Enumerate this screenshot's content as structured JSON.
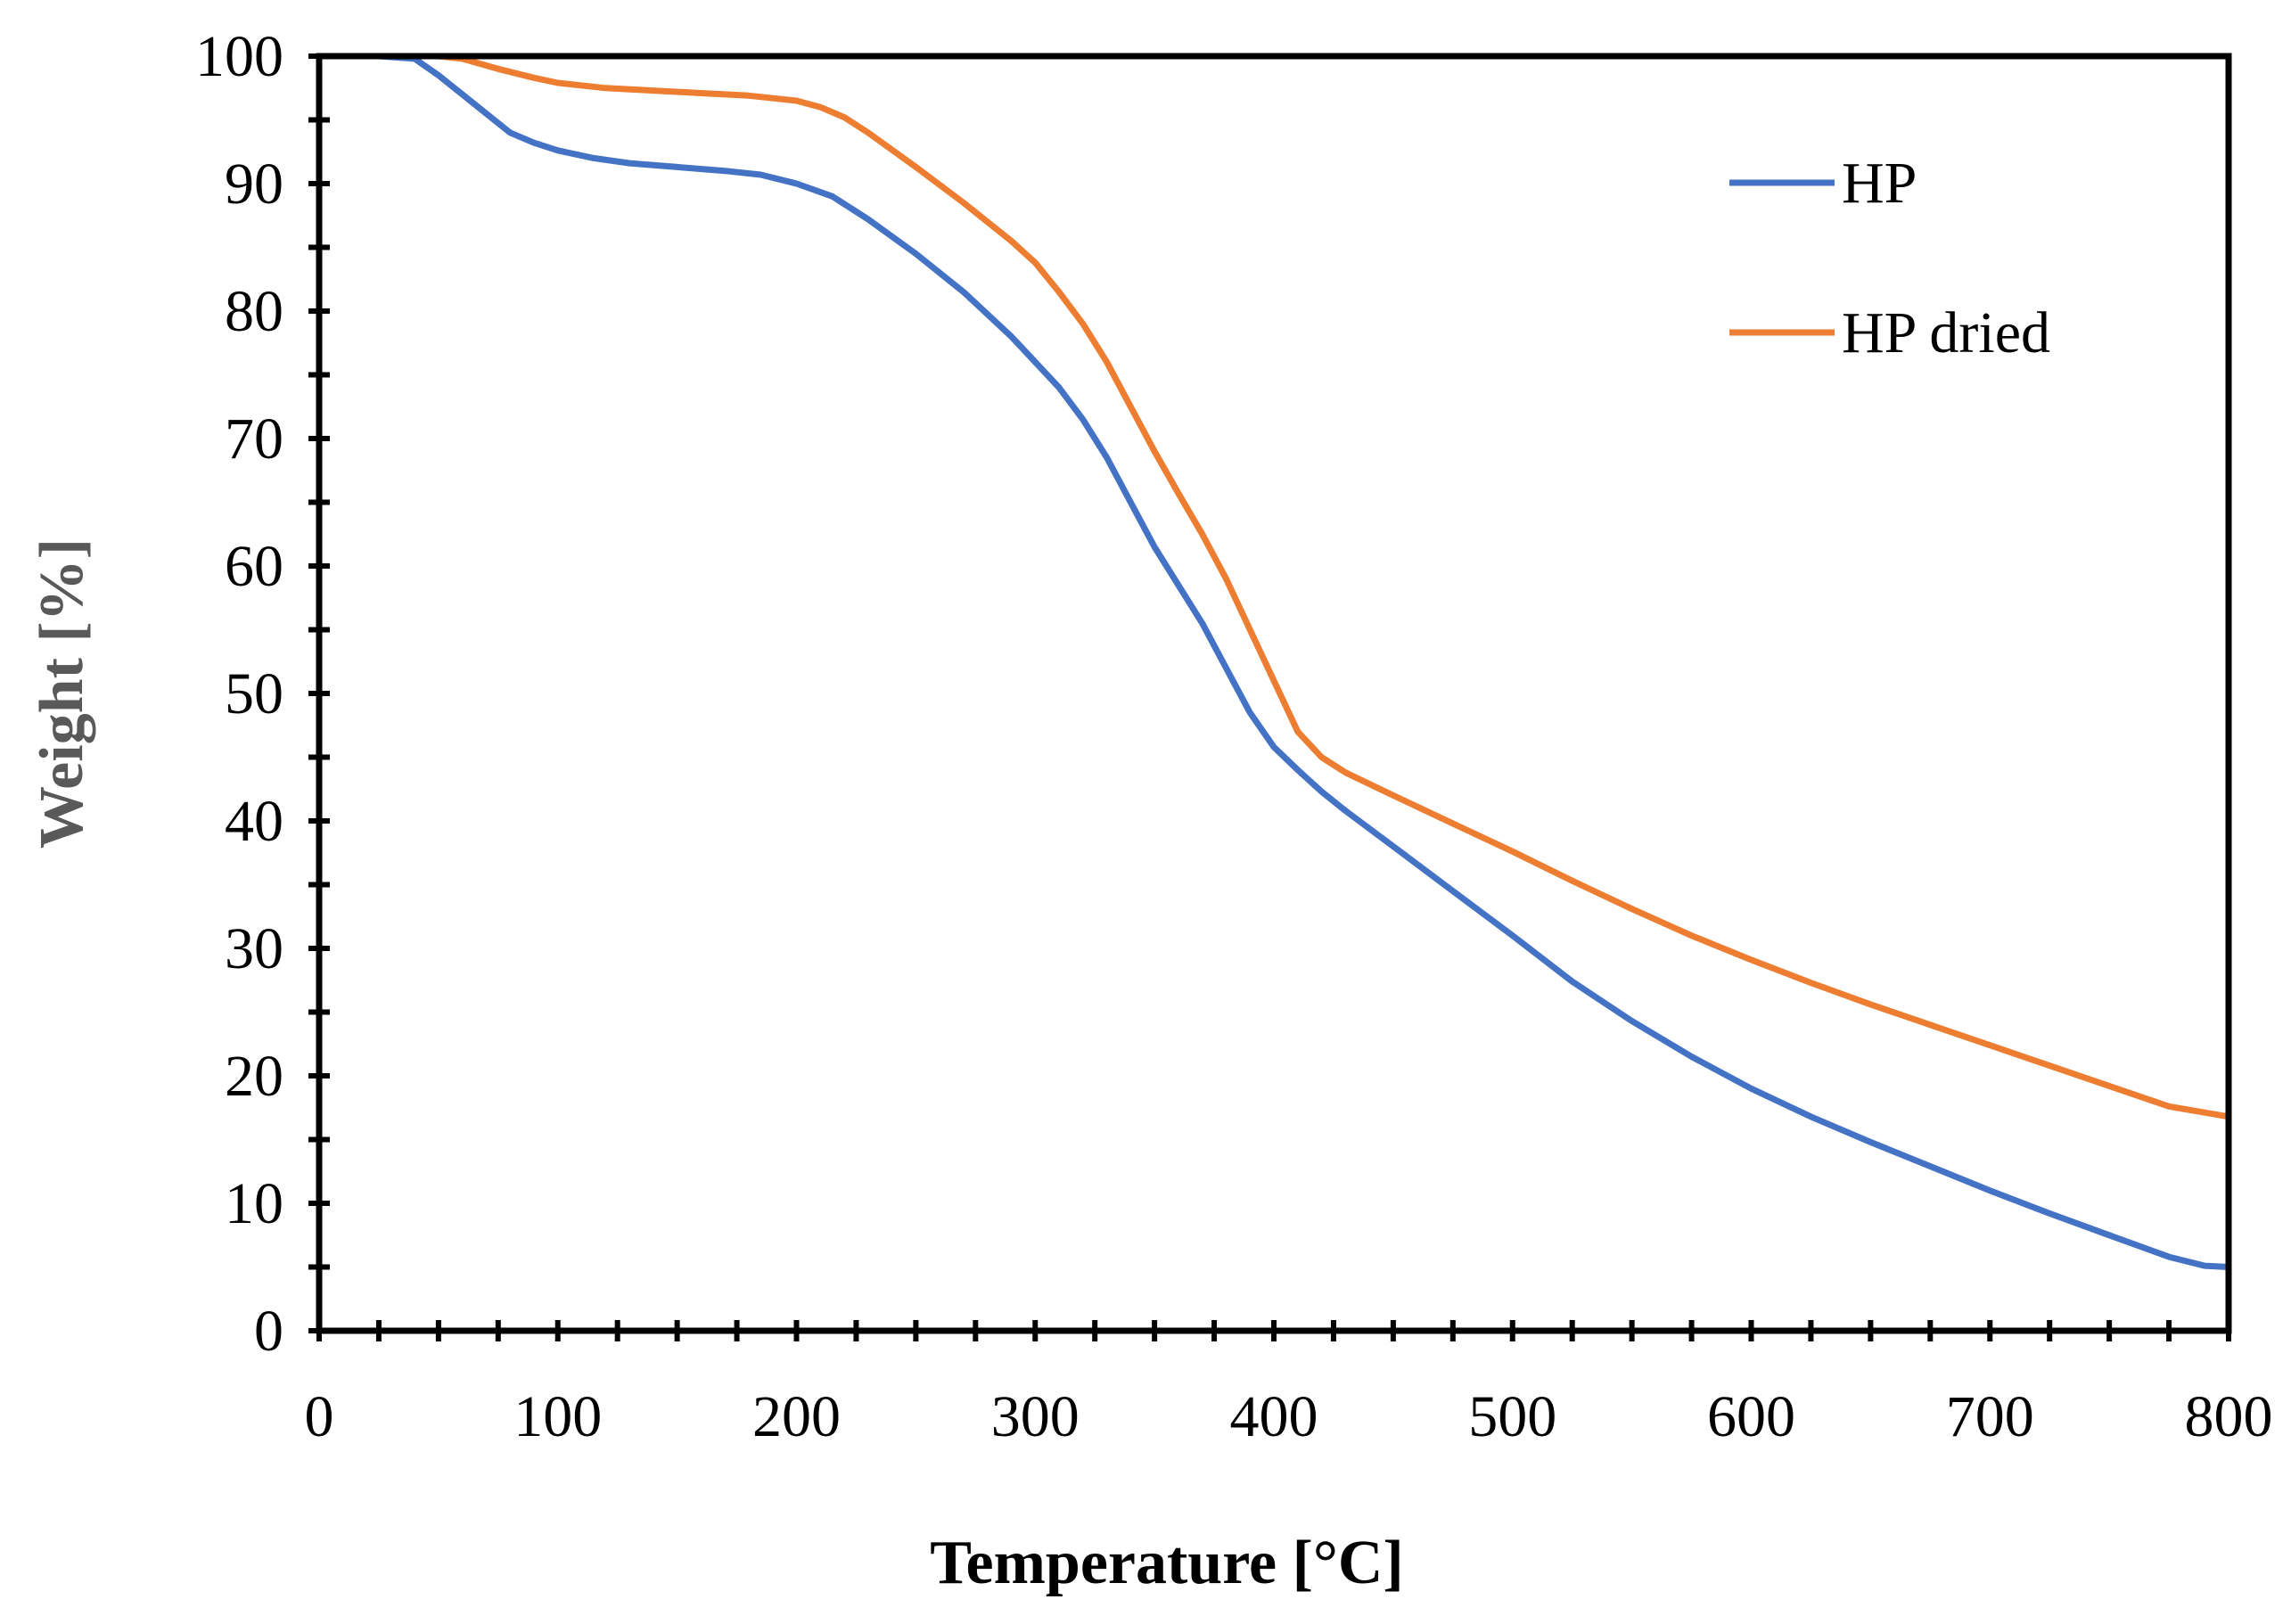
{
  "chart_data": {
    "type": "line",
    "title": "",
    "xlabel": "Temperature [°C]",
    "ylabel": "Weight [%]",
    "xlim": [
      0,
      800
    ],
    "ylim": [
      0,
      100
    ],
    "xticks": [
      0,
      100,
      200,
      300,
      400,
      500,
      600,
      700,
      800
    ],
    "yticks": [
      0,
      10,
      20,
      30,
      40,
      50,
      60,
      70,
      80,
      90,
      100
    ],
    "grid": false,
    "legend_position": "top-right",
    "series": [
      {
        "name": "HP",
        "color": "#4472C4",
        "x": [
          25,
          40,
          50,
          60,
          70,
          80,
          90,
          100,
          115,
          130,
          150,
          170,
          185,
          200,
          215,
          230,
          250,
          270,
          290,
          300,
          310,
          320,
          330,
          340,
          350,
          360,
          370,
          380,
          390,
          400,
          410,
          420,
          430,
          450,
          475,
          500,
          525,
          550,
          575,
          600,
          625,
          650,
          675,
          700,
          725,
          750,
          775,
          790,
          800
        ],
        "values": [
          100,
          99.8,
          98.5,
          97,
          95.5,
          94,
          93.2,
          92.6,
          92,
          91.6,
          91.3,
          91,
          90.7,
          90,
          89,
          87.2,
          84.5,
          81.5,
          78,
          76,
          74,
          71.5,
          68.5,
          65,
          61.5,
          58.5,
          55.5,
          52,
          48.5,
          45.8,
          44,
          42.3,
          40.8,
          38,
          34.5,
          31,
          27.4,
          24.3,
          21.5,
          19,
          16.8,
          14.8,
          12.9,
          11,
          9.2,
          7.5,
          5.8,
          5.1,
          5
        ]
      },
      {
        "name": "HP dried",
        "color": "#ED7D31",
        "x": [
          25,
          50,
          60,
          75,
          90,
          100,
          120,
          140,
          160,
          180,
          200,
          210,
          220,
          230,
          250,
          270,
          290,
          300,
          310,
          320,
          330,
          340,
          350,
          360,
          370,
          380,
          390,
          400,
          410,
          420,
          430,
          450,
          475,
          500,
          525,
          550,
          575,
          600,
          625,
          650,
          675,
          700,
          725,
          750,
          775,
          800
        ],
        "values": [
          100,
          100,
          99.8,
          99,
          98.3,
          97.9,
          97.5,
          97.3,
          97.1,
          96.9,
          96.5,
          96,
          95.2,
          94,
          91.3,
          88.5,
          85.5,
          83.8,
          81.5,
          79,
          76,
          72.5,
          69,
          65.7,
          62.5,
          59,
          55,
          51,
          47,
          45,
          43.8,
          42,
          39.8,
          37.6,
          35.3,
          33.1,
          31,
          29.1,
          27.3,
          25.6,
          24,
          22.4,
          20.8,
          19.2,
          17.6,
          16.8
        ]
      }
    ]
  }
}
